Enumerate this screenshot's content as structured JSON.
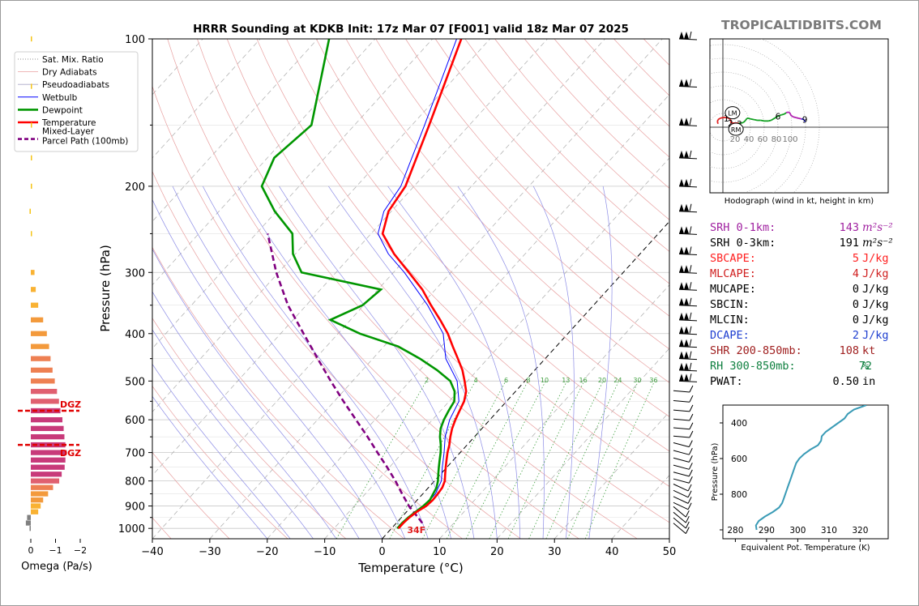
{
  "watermark": "TROPICALTIDBITS.COM",
  "chart_data": [
    {
      "type": "line",
      "name": "skew-t",
      "title": "HRRR Sounding at KDKB Init: 17z Mar 07 [F001] valid 18z Mar 07 2025",
      "xlabel": "Temperature (°C)",
      "ylabel": "Pressure (hPa)",
      "xlim": [
        -40,
        50
      ],
      "ylim": [
        1050,
        100
      ],
      "y_scale": "log",
      "x_ticks": [
        "−40",
        "−30",
        "−20",
        "−10",
        "0",
        "10",
        "20",
        "30",
        "40",
        "50"
      ],
      "y_ticks": [
        "100",
        "200",
        "300",
        "400",
        "500",
        "600",
        "700",
        "800",
        "900",
        "1000"
      ],
      "grid": true,
      "legend_position": "upper-left",
      "legend": [
        "Sat. Mix. Ratio",
        "Dry Adiabats",
        "Pseudoadiabats",
        "Wetbulb",
        "Dewpoint",
        "Temperature",
        "Mixed-Layer\nParcel Path (100mb)"
      ],
      "mixing_ratio_labels": [
        "2",
        "4",
        "6",
        "8",
        "10",
        "13",
        "16",
        "20",
        "24",
        "30",
        "36"
      ],
      "freezing_label": "34F",
      "series": [
        {
          "name": "Temperature",
          "color": "#ff0000",
          "points": [
            [
              1000,
              1.2
            ],
            [
              975,
              1.2
            ],
            [
              950,
              1.4
            ],
            [
              925,
              1.8
            ],
            [
              900,
              2.5
            ],
            [
              875,
              2.7
            ],
            [
              850,
              2.6
            ],
            [
              825,
              2.4
            ],
            [
              800,
              1.8
            ],
            [
              775,
              0.8
            ],
            [
              750,
              -0.2
            ],
            [
              725,
              -1.2
            ],
            [
              700,
              -2.2
            ],
            [
              675,
              -3.1
            ],
            [
              650,
              -4.2
            ],
            [
              625,
              -5.2
            ],
            [
              600,
              -6.0
            ],
            [
              575,
              -6.7
            ],
            [
              550,
              -7.4
            ],
            [
              525,
              -8.6
            ],
            [
              500,
              -10.5
            ],
            [
              475,
              -12.6
            ],
            [
              450,
              -15.2
            ],
            [
              425,
              -18.0
            ],
            [
              400,
              -20.9
            ],
            [
              375,
              -24.4
            ],
            [
              350,
              -28.3
            ],
            [
              325,
              -32.3
            ],
            [
              300,
              -37.3
            ],
            [
              275,
              -42.8
            ],
            [
              250,
              -48.0
            ],
            [
              225,
              -50.5
            ],
            [
              200,
              -51.5
            ],
            [
              150,
              -57.0
            ],
            [
              100,
              -65.0
            ]
          ]
        },
        {
          "name": "Dewpoint",
          "color": "#009600",
          "points": [
            [
              1000,
              1.0
            ],
            [
              975,
              1.0
            ],
            [
              950,
              1.2
            ],
            [
              925,
              1.6
            ],
            [
              900,
              2.0
            ],
            [
              875,
              2.2
            ],
            [
              850,
              1.8
            ],
            [
              825,
              1.4
            ],
            [
              800,
              0.6
            ],
            [
              775,
              -0.4
            ],
            [
              750,
              -1.4
            ],
            [
              725,
              -2.4
            ],
            [
              700,
              -3.4
            ],
            [
              675,
              -4.6
            ],
            [
              650,
              -6.0
            ],
            [
              625,
              -7.2
            ],
            [
              600,
              -8.0
            ],
            [
              575,
              -8.6
            ],
            [
              550,
              -9.1
            ],
            [
              525,
              -10.6
            ],
            [
              500,
              -13.0
            ],
            [
              475,
              -17.0
            ],
            [
              450,
              -21.8
            ],
            [
              425,
              -27.5
            ],
            [
              400,
              -36.2
            ],
            [
              375,
              -43.5
            ],
            [
              350,
              -40.2
            ],
            [
              325,
              -39.5
            ],
            [
              300,
              -56.0
            ],
            [
              275,
              -60.4
            ],
            [
              250,
              -63.7
            ],
            [
              225,
              -70.3
            ],
            [
              200,
              -76.5
            ],
            [
              175,
              -78.8
            ],
            [
              150,
              -77.5
            ],
            [
              100,
              -88.0
            ]
          ]
        },
        {
          "name": "Wetbulb",
          "color": "#0000ff",
          "points": [
            [
              1000,
              1.1
            ],
            [
              950,
              1.3
            ],
            [
              900,
              2.2
            ],
            [
              850,
              2.2
            ],
            [
              800,
              1.2
            ],
            [
              750,
              -0.8
            ],
            [
              700,
              -2.8
            ],
            [
              650,
              -5.1
            ],
            [
              600,
              -7.0
            ],
            [
              550,
              -8.3
            ],
            [
              500,
              -11.8
            ],
            [
              450,
              -17.3
            ],
            [
              400,
              -21.7
            ],
            [
              350,
              -28.9
            ],
            [
              300,
              -38.1
            ],
            [
              275,
              -43.8
            ],
            [
              250,
              -48.8
            ],
            [
              225,
              -51.3
            ],
            [
              200,
              -52.3
            ],
            [
              150,
              -57.8
            ],
            [
              100,
              -65.8
            ]
          ]
        },
        {
          "name": "Mixed-Layer Parcel Path (100mb)",
          "color": "#800080",
          "points": [
            [
              975,
              4.5
            ],
            [
              950,
              2.9
            ],
            [
              925,
              1.2
            ],
            [
              900,
              -0.5
            ],
            [
              850,
              -3.6
            ],
            [
              800,
              -6.8
            ],
            [
              750,
              -10.4
            ],
            [
              700,
              -14.4
            ],
            [
              650,
              -18.6
            ],
            [
              600,
              -23.3
            ],
            [
              550,
              -28.4
            ],
            [
              500,
              -33.8
            ],
            [
              450,
              -39.6
            ],
            [
              400,
              -46.0
            ],
            [
              350,
              -53.2
            ],
            [
              300,
              -60.4
            ],
            [
              250,
              -68.0
            ]
          ]
        }
      ],
      "wind_barb_pressures": [
        1000,
        975,
        950,
        925,
        900,
        875,
        850,
        825,
        800,
        775,
        750,
        725,
        700,
        675,
        650,
        625,
        600,
        575,
        550,
        525,
        500,
        475,
        450,
        425,
        400,
        375,
        350,
        325,
        300,
        275,
        250,
        225,
        200,
        175,
        150,
        125,
        100
      ]
    },
    {
      "type": "bar",
      "name": "omega",
      "xlabel": "Omega (Pa/s)",
      "x_ticks": [
        "0",
        "−1",
        "−2"
      ],
      "dgz_label": "DGZ",
      "dgz_bounds": [
        575,
        675
      ],
      "levels": [
        1000,
        975,
        950,
        925,
        900,
        875,
        850,
        825,
        800,
        775,
        750,
        725,
        700,
        675,
        650,
        625,
        600,
        575,
        550,
        525,
        500,
        475,
        450,
        425,
        400,
        375,
        350,
        325,
        300,
        250,
        225,
        200,
        175,
        150,
        125,
        100
      ],
      "values": [
        0.05,
        0.2,
        0.15,
        -0.3,
        -0.4,
        -0.5,
        -0.7,
        -0.9,
        -1.15,
        -1.25,
        -1.37,
        -1.4,
        -1.45,
        -1.4,
        -1.36,
        -1.33,
        -1.28,
        -1.2,
        -1.14,
        -1.06,
        -0.97,
        -0.88,
        -0.8,
        -0.74,
        -0.65,
        -0.5,
        -0.3,
        -0.2,
        -0.15,
        -0.03,
        0.05,
        -0.05,
        -0.05,
        -0.02,
        -0.05,
        -0.05
      ]
    },
    {
      "type": "line",
      "name": "hodograph",
      "xlabel": "Hodograph (wind in kt, height in km)",
      "ring_labels": [
        "20",
        "40",
        "60",
        "80",
        "100"
      ],
      "storm_motion_labels": [
        "LM",
        "RM"
      ],
      "height_labels": [
        {
          "t": "1",
          "u": 5,
          "v": 13
        },
        {
          "t": "2",
          "u": 11,
          "v": 6
        },
        {
          "t": "3",
          "u": 24,
          "v": 5
        },
        {
          "t": "6",
          "u": 80,
          "v": 16
        },
        {
          "t": "9",
          "u": 119,
          "v": 11
        }
      ],
      "points": [
        [
          -7,
          5
        ],
        [
          -8,
          8
        ],
        [
          -7,
          11
        ],
        [
          -4,
          13
        ],
        [
          0,
          14
        ],
        [
          5,
          14
        ],
        [
          9,
          13
        ],
        [
          11,
          11
        ],
        [
          12,
          9
        ],
        [
          11,
          7
        ],
        [
          13,
          6
        ],
        [
          18,
          6
        ],
        [
          23,
          6
        ],
        [
          27,
          6
        ],
        [
          30,
          7
        ],
        [
          33,
          10
        ],
        [
          35,
          13
        ],
        [
          37,
          13
        ],
        [
          40,
          12
        ],
        [
          45,
          11
        ],
        [
          50,
          10
        ],
        [
          55,
          10
        ],
        [
          60,
          9
        ],
        [
          66,
          9
        ],
        [
          70,
          10
        ],
        [
          75,
          13
        ],
        [
          80,
          16
        ],
        [
          85,
          18
        ],
        [
          89,
          19
        ],
        [
          92,
          21
        ],
        [
          95,
          22
        ],
        [
          97,
          21
        ],
        [
          99,
          17
        ],
        [
          102,
          15
        ],
        [
          106,
          14
        ],
        [
          110,
          13
        ],
        [
          114,
          12
        ],
        [
          118,
          11
        ],
        [
          119,
          8
        ]
      ],
      "lm": [
        14,
        21
      ],
      "rm": [
        19,
        -3
      ]
    },
    {
      "type": "line",
      "name": "theta-e",
      "xlabel": "Equivalent Pot. Temperature (K)",
      "ylabel": "Pressure (hPa)",
      "x_ticks": [
        "280",
        "290",
        "300",
        "310",
        "320"
      ],
      "y_ticks": [
        "400",
        "600",
        "800"
      ],
      "xlim": [
        276,
        329
      ],
      "ylim": [
        1050,
        300
      ],
      "points": [
        [
          1000,
          286.8
        ],
        [
          975,
          286.6
        ],
        [
          950,
          287.5
        ],
        [
          925,
          289.5
        ],
        [
          900,
          292.0
        ],
        [
          875,
          294.0
        ],
        [
          850,
          295.0
        ],
        [
          825,
          295.5
        ],
        [
          800,
          296.0
        ],
        [
          775,
          296.5
        ],
        [
          750,
          297.0
        ],
        [
          725,
          297.5
        ],
        [
          700,
          298.0
        ],
        [
          675,
          298.5
        ],
        [
          650,
          299.0
        ],
        [
          625,
          299.5
        ],
        [
          600,
          300.5
        ],
        [
          575,
          302.0
        ],
        [
          550,
          304.0
        ],
        [
          525,
          306.5
        ],
        [
          500,
          307.5
        ],
        [
          475,
          307.7
        ],
        [
          450,
          309.0
        ],
        [
          425,
          311.0
        ],
        [
          400,
          313.0
        ],
        [
          375,
          315.0
        ],
        [
          350,
          316.0
        ],
        [
          325,
          318.0
        ],
        [
          300,
          322.0
        ]
      ]
    }
  ],
  "params": [
    {
      "label": "SRH 0-1km:",
      "value": "143",
      "unit": "m²s⁻²",
      "color": "#a020a0",
      "italic": true
    },
    {
      "label": "SRH 0-3km:",
      "value": "191",
      "unit": "m²s⁻²",
      "color": "#000000",
      "italic": true
    },
    {
      "label": "SBCAPE:",
      "value": "5",
      "unit": "J/kg",
      "color": "#ff2020"
    },
    {
      "label": "MLCAPE:",
      "value": "4",
      "unit": "J/kg",
      "color": "#d02020"
    },
    {
      "label": "MUCAPE:",
      "value": "0",
      "unit": "J/kg",
      "color": "#000000"
    },
    {
      "label": "SBCIN:",
      "value": "0",
      "unit": "J/kg",
      "color": "#000000"
    },
    {
      "label": "MLCIN:",
      "value": "0",
      "unit": "J/kg",
      "color": "#000000"
    },
    {
      "label": "DCAPE:",
      "value": "2",
      "unit": "J/kg",
      "color": "#1f3fd0"
    },
    {
      "label": "SHR 200-850mb:",
      "value": "108",
      "unit": "kt",
      "color": "#a02020"
    },
    {
      "label": "RH 300-850mb:",
      "value": "72",
      "unit": "%",
      "color": "#108040"
    },
    {
      "label": "PWAT:",
      "value": "0.50",
      "unit": "in",
      "color": "#000000"
    }
  ]
}
